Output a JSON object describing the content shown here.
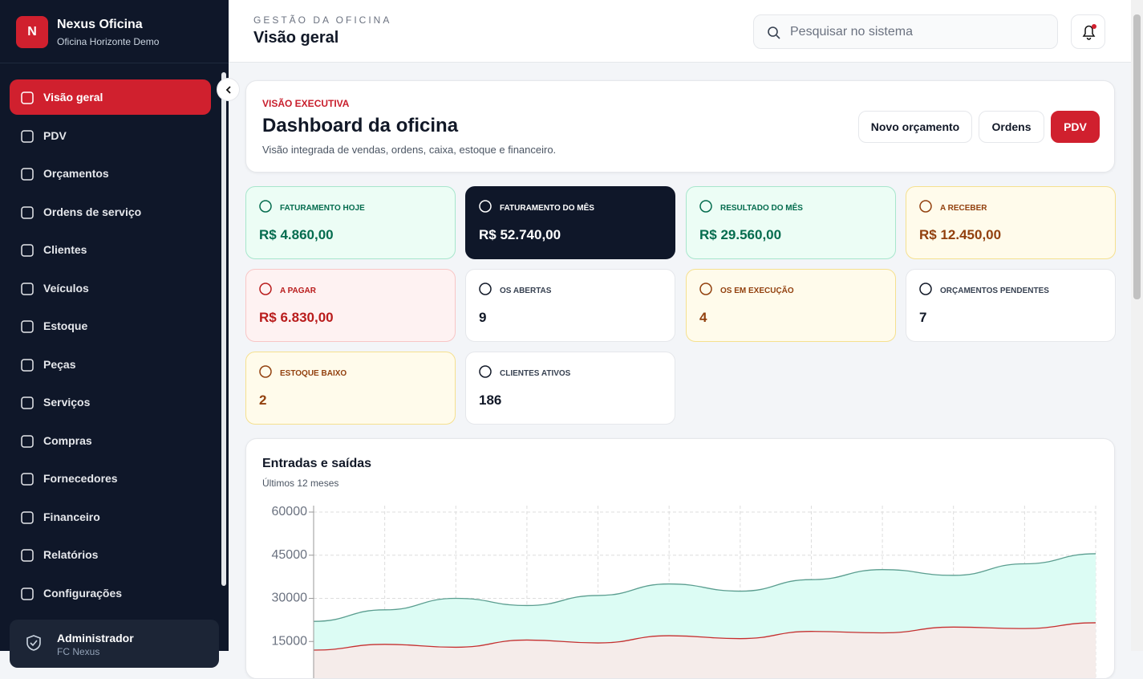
{
  "brand": {
    "name": "Nexus Oficina",
    "subtitle": "Oficina Horizonte Demo",
    "initial": "N"
  },
  "nav": [
    "Visão geral",
    "PDV",
    "Orçamentos",
    "Ordens de serviço",
    "Clientes",
    "Veículos",
    "Estoque",
    "Peças",
    "Serviços",
    "Compras",
    "Fornecedores",
    "Financeiro",
    "Relatórios",
    "Configurações"
  ],
  "user": {
    "name": "Administrador",
    "org": "FC Nexus"
  },
  "header": {
    "eyebrow": "GESTÃO DA OFICINA",
    "title": "Visão geral",
    "search_placeholder": "Pesquisar no sistema"
  },
  "hero": {
    "eyebrow": "VISÃO EXECUTIVA",
    "title": "Dashboard da oficina",
    "subtitle": "Visão integrada de vendas, ordens, caixa, estoque e financeiro.",
    "buttons": [
      "Novo orçamento",
      "Ordens",
      "PDV"
    ]
  },
  "kpis": [
    {
      "label": "FATURAMENTO HOJE",
      "value": "R$ 4.860,00"
    },
    {
      "label": "FATURAMENTO DO MÊS",
      "value": "R$ 52.740,00"
    },
    {
      "label": "RESULTADO DO MÊS",
      "value": "R$ 29.560,00"
    },
    {
      "label": "A RECEBER",
      "value": "R$ 12.450,00"
    },
    {
      "label": "A PAGAR",
      "value": "R$ 6.830,00"
    },
    {
      "label": "OS ABERTAS",
      "value": "9"
    },
    {
      "label": "OS EM EXECUÇÃO",
      "value": "4"
    },
    {
      "label": "ORÇAMENTOS PENDENTES",
      "value": "7"
    },
    {
      "label": "ESTOQUE BAIXO",
      "value": "2"
    },
    {
      "label": "CLIENTES ATIVOS",
      "value": "186"
    }
  ],
  "chart_data": {
    "type": "area",
    "title": "Entradas e saídas",
    "subtitle": "Últimos 12 meses",
    "ylim": [
      0,
      60000
    ],
    "yticks": [
      15000,
      30000,
      45000,
      60000
    ],
    "grid": true,
    "series": [
      {
        "color": "#5b9e90",
        "fill": "#dcfcf4",
        "values": [
          22000,
          26000,
          30000,
          27500,
          31000,
          35000,
          32500,
          36500,
          40000,
          38000,
          42000,
          45500
        ]
      },
      {
        "color": "#c53030",
        "fill": "#f5ecea",
        "values": [
          12000,
          14000,
          13000,
          15500,
          14500,
          17000,
          16000,
          18500,
          18000,
          20000,
          19500,
          21500
        ]
      }
    ]
  }
}
